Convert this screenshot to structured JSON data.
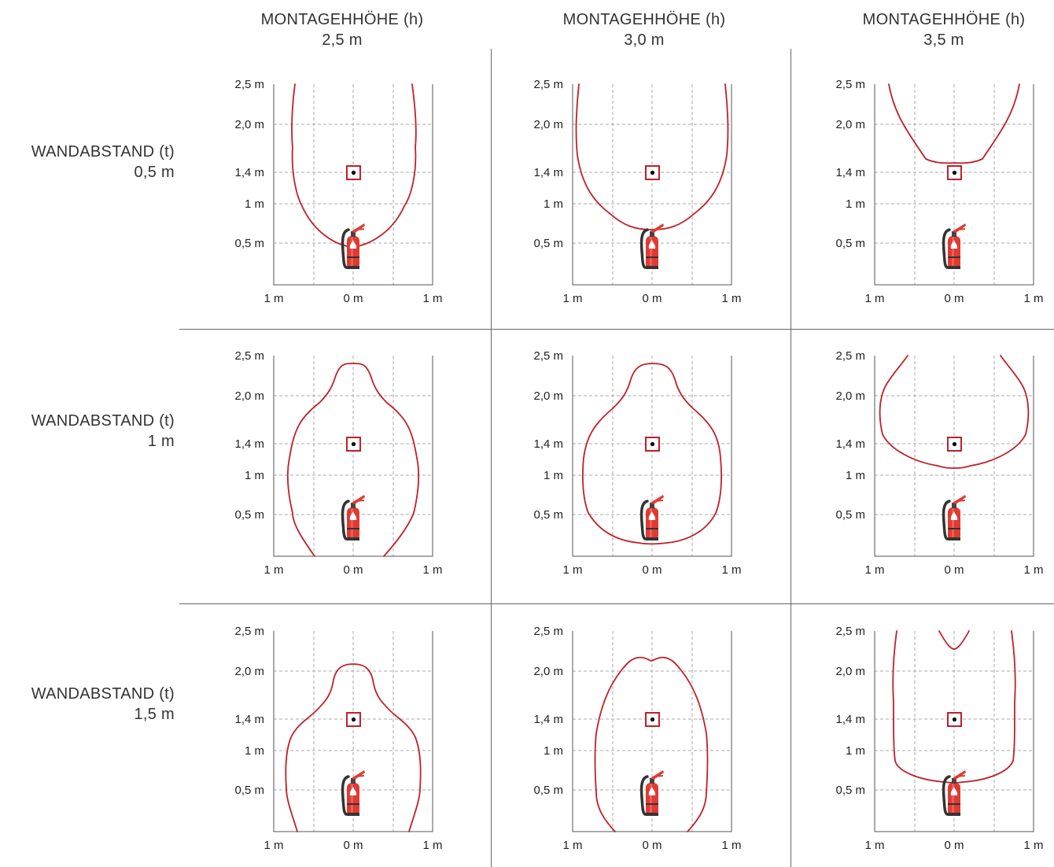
{
  "columns": [
    {
      "title": "MONTAGEHHÖHE (h)",
      "value": "2,5 m"
    },
    {
      "title": "MONTAGEHHÖHE (h)",
      "value": "3,0 m"
    },
    {
      "title": "MONTAGEHHÖHE (h)",
      "value": "3,5 m"
    }
  ],
  "rows": [
    {
      "title": "WANDABSTAND (t)",
      "value": "0,5 m"
    },
    {
      "title": "WANDABSTAND (t)",
      "value": "1 m"
    },
    {
      "title": "WANDABSTAND (t)",
      "value": "1,5 m"
    }
  ],
  "axis": {
    "y_labels": [
      "2,5 m",
      "2,0 m",
      "1,4 m",
      "1 m",
      "0,5 m"
    ],
    "x_labels": [
      "1 m",
      "0 m",
      "1 m"
    ]
  },
  "colors": {
    "coverage": "#c0202a",
    "detector": "#c0202a",
    "extinguisher": "#e03a32"
  },
  "icons": {
    "detector": "detector-icon",
    "extinguisher": "fire-extinguisher-icon"
  }
}
